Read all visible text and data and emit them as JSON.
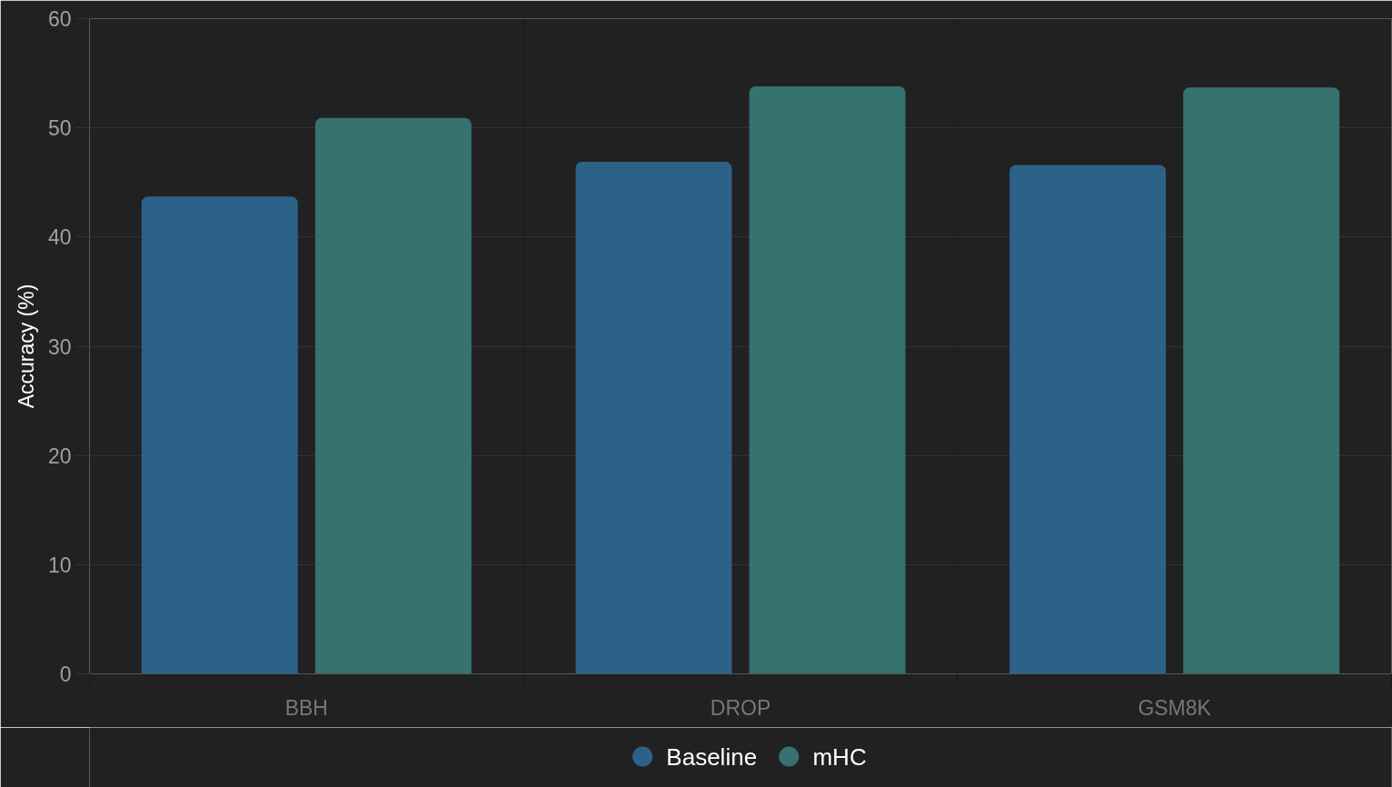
{
  "chart_data": {
    "type": "bar",
    "ylabel": "Accuracy (%)",
    "categories": [
      "BBH",
      "DROP",
      "GSM8K"
    ],
    "series": [
      {
        "name": "Baseline",
        "color": "#2c6287",
        "values": [
          43.7,
          46.9,
          46.6
        ]
      },
      {
        "name": "mHC",
        "color": "#377170",
        "values": [
          50.9,
          53.8,
          53.7
        ]
      }
    ],
    "ylim": [
      0,
      60
    ],
    "yticks": [
      0,
      10,
      20,
      30,
      40,
      50,
      60
    ],
    "grid": true,
    "legend": "bottom"
  }
}
